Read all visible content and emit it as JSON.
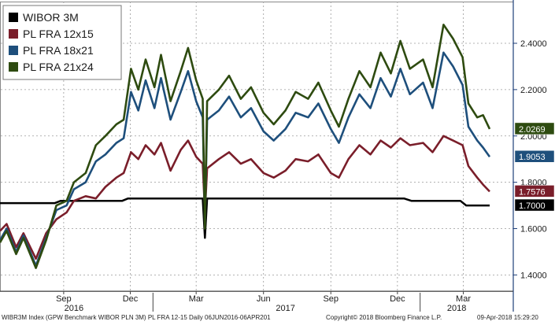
{
  "chart_data": {
    "type": "line",
    "title": "",
    "xlabel": "",
    "ylabel": "",
    "ylim": [
      1.33,
      2.58
    ],
    "y_ticks": [
      1.4,
      1.6,
      1.8,
      2.0,
      2.2,
      2.4
    ],
    "y_tick_labels": [
      "1.4000",
      "1.6000",
      "1.8000",
      "2.0000",
      "2.2000",
      "2.4000"
    ],
    "x_range": [
      "2016-06-06",
      "2018-04-06"
    ],
    "month_ticks": [
      {
        "label": "Sep",
        "date": "2016-09-01"
      },
      {
        "label": "Dec",
        "date": "2016-12-01"
      },
      {
        "label": "Mar",
        "date": "2017-03-01"
      },
      {
        "label": "Jun",
        "date": "2017-06-01"
      },
      {
        "label": "Sep",
        "date": "2017-09-01"
      },
      {
        "label": "Dec",
        "date": "2017-12-01"
      },
      {
        "label": "Mar",
        "date": "2018-03-01"
      }
    ],
    "year_labels": [
      {
        "label": "2016",
        "date": "2016-09-15"
      },
      {
        "label": "2017",
        "date": "2017-07-01"
      },
      {
        "label": "2018",
        "date": "2018-02-20"
      }
    ],
    "year_separators": [
      "2017-01-01",
      "2018-01-01"
    ],
    "grid": true,
    "legend_position": "top-left",
    "series": [
      {
        "name": "WIBOR 3M",
        "color": "#000000",
        "last_value": "1.7000",
        "points": [
          [
            "2016-06-06",
            1.71
          ],
          [
            "2016-08-20",
            1.71
          ],
          [
            "2016-08-28",
            1.72
          ],
          [
            "2016-11-20",
            1.72
          ],
          [
            "2016-11-28",
            1.73
          ],
          [
            "2017-03-10",
            1.73
          ],
          [
            "2017-03-13",
            1.56
          ],
          [
            "2017-03-16",
            1.73
          ],
          [
            "2017-12-10",
            1.73
          ],
          [
            "2017-12-20",
            1.72
          ],
          [
            "2018-02-25",
            1.72
          ],
          [
            "2018-03-05",
            1.7
          ],
          [
            "2018-04-06",
            1.7
          ]
        ]
      },
      {
        "name": "PL FRA 12x15",
        "color": "#7a1e2a",
        "last_value": "1.7576",
        "points": [
          [
            "2016-06-06",
            1.59
          ],
          [
            "2016-06-15",
            1.62
          ],
          [
            "2016-06-28",
            1.52
          ],
          [
            "2016-07-08",
            1.58
          ],
          [
            "2016-07-25",
            1.47
          ],
          [
            "2016-08-08",
            1.58
          ],
          [
            "2016-08-22",
            1.64
          ],
          [
            "2016-09-05",
            1.67
          ],
          [
            "2016-09-15",
            1.72
          ],
          [
            "2016-10-01",
            1.74
          ],
          [
            "2016-10-15",
            1.73
          ],
          [
            "2016-10-28",
            1.78
          ],
          [
            "2016-11-12",
            1.82
          ],
          [
            "2016-11-22",
            1.84
          ],
          [
            "2016-12-02",
            1.93
          ],
          [
            "2016-12-12",
            1.9
          ],
          [
            "2016-12-22",
            1.96
          ],
          [
            "2017-01-03",
            1.92
          ],
          [
            "2017-01-12",
            1.97
          ],
          [
            "2017-01-25",
            1.85
          ],
          [
            "2017-02-08",
            1.94
          ],
          [
            "2017-02-18",
            1.98
          ],
          [
            "2017-03-01",
            1.91
          ],
          [
            "2017-03-10",
            1.88
          ],
          [
            "2017-03-13",
            1.67
          ],
          [
            "2017-03-16",
            1.86
          ],
          [
            "2017-04-01",
            1.9
          ],
          [
            "2017-04-15",
            1.93
          ],
          [
            "2017-05-01",
            1.88
          ],
          [
            "2017-05-15",
            1.9
          ],
          [
            "2017-06-01",
            1.84
          ],
          [
            "2017-06-15",
            1.82
          ],
          [
            "2017-07-01",
            1.85
          ],
          [
            "2017-07-15",
            1.9
          ],
          [
            "2017-08-01",
            1.89
          ],
          [
            "2017-08-15",
            1.92
          ],
          [
            "2017-09-01",
            1.84
          ],
          [
            "2017-09-12",
            1.82
          ],
          [
            "2017-09-25",
            1.9
          ],
          [
            "2017-10-10",
            1.96
          ],
          [
            "2017-10-25",
            1.92
          ],
          [
            "2017-11-08",
            1.98
          ],
          [
            "2017-11-22",
            1.95
          ],
          [
            "2017-12-05",
            1.99
          ],
          [
            "2017-12-18",
            1.96
          ],
          [
            "2018-01-05",
            1.97
          ],
          [
            "2018-01-18",
            1.93
          ],
          [
            "2018-02-02",
            2.0
          ],
          [
            "2018-02-15",
            1.98
          ],
          [
            "2018-02-28",
            1.96
          ],
          [
            "2018-03-08",
            1.87
          ],
          [
            "2018-03-20",
            1.82
          ],
          [
            "2018-03-28",
            1.79
          ],
          [
            "2018-04-06",
            1.76
          ]
        ]
      },
      {
        "name": "PL FRA 18x21",
        "color": "#1e4f7c",
        "last_value": "1.9053",
        "points": [
          [
            "2016-06-06",
            1.55
          ],
          [
            "2016-06-15",
            1.6
          ],
          [
            "2016-06-28",
            1.5
          ],
          [
            "2016-07-08",
            1.57
          ],
          [
            "2016-07-25",
            1.44
          ],
          [
            "2016-08-08",
            1.56
          ],
          [
            "2016-08-22",
            1.68
          ],
          [
            "2016-09-05",
            1.7
          ],
          [
            "2016-09-15",
            1.77
          ],
          [
            "2016-10-01",
            1.8
          ],
          [
            "2016-10-15",
            1.89
          ],
          [
            "2016-10-28",
            1.92
          ],
          [
            "2016-11-12",
            1.97
          ],
          [
            "2016-11-22",
            1.99
          ],
          [
            "2016-12-02",
            2.19
          ],
          [
            "2016-12-12",
            2.11
          ],
          [
            "2016-12-22",
            2.24
          ],
          [
            "2017-01-03",
            2.12
          ],
          [
            "2017-01-12",
            2.25
          ],
          [
            "2017-01-25",
            2.07
          ],
          [
            "2017-02-08",
            2.19
          ],
          [
            "2017-02-18",
            2.28
          ],
          [
            "2017-03-01",
            2.15
          ],
          [
            "2017-03-10",
            2.08
          ],
          [
            "2017-03-13",
            1.62
          ],
          [
            "2017-03-16",
            2.07
          ],
          [
            "2017-04-01",
            2.11
          ],
          [
            "2017-04-15",
            2.17
          ],
          [
            "2017-05-01",
            2.08
          ],
          [
            "2017-05-15",
            2.12
          ],
          [
            "2017-06-01",
            2.02
          ],
          [
            "2017-06-15",
            1.98
          ],
          [
            "2017-07-01",
            2.03
          ],
          [
            "2017-07-15",
            2.1
          ],
          [
            "2017-08-01",
            2.08
          ],
          [
            "2017-08-15",
            2.14
          ],
          [
            "2017-09-01",
            2.03
          ],
          [
            "2017-09-12",
            1.97
          ],
          [
            "2017-09-25",
            2.08
          ],
          [
            "2017-10-10",
            2.18
          ],
          [
            "2017-10-25",
            2.12
          ],
          [
            "2017-11-08",
            2.25
          ],
          [
            "2017-11-22",
            2.17
          ],
          [
            "2017-12-05",
            2.29
          ],
          [
            "2017-12-18",
            2.18
          ],
          [
            "2018-01-05",
            2.23
          ],
          [
            "2018-01-18",
            2.12
          ],
          [
            "2018-02-02",
            2.36
          ],
          [
            "2018-02-15",
            2.3
          ],
          [
            "2018-02-28",
            2.22
          ],
          [
            "2018-03-08",
            2.04
          ],
          [
            "2018-03-20",
            1.98
          ],
          [
            "2018-03-28",
            1.95
          ],
          [
            "2018-04-06",
            1.91
          ]
        ]
      },
      {
        "name": "PL FRA 21x24",
        "color": "#2e4b10",
        "last_value": "2.0269",
        "points": [
          [
            "2016-06-06",
            1.54
          ],
          [
            "2016-06-15",
            1.59
          ],
          [
            "2016-06-28",
            1.49
          ],
          [
            "2016-07-08",
            1.56
          ],
          [
            "2016-07-25",
            1.43
          ],
          [
            "2016-08-08",
            1.55
          ],
          [
            "2016-08-22",
            1.7
          ],
          [
            "2016-09-05",
            1.72
          ],
          [
            "2016-09-15",
            1.8
          ],
          [
            "2016-10-01",
            1.84
          ],
          [
            "2016-10-15",
            1.96
          ],
          [
            "2016-10-28",
            2.0
          ],
          [
            "2016-11-12",
            2.05
          ],
          [
            "2016-11-22",
            2.07
          ],
          [
            "2016-12-02",
            2.29
          ],
          [
            "2016-12-12",
            2.2
          ],
          [
            "2016-12-22",
            2.33
          ],
          [
            "2017-01-03",
            2.21
          ],
          [
            "2017-01-12",
            2.35
          ],
          [
            "2017-01-25",
            2.15
          ],
          [
            "2017-02-08",
            2.28
          ],
          [
            "2017-02-18",
            2.38
          ],
          [
            "2017-03-01",
            2.24
          ],
          [
            "2017-03-10",
            2.16
          ],
          [
            "2017-03-13",
            1.6
          ],
          [
            "2017-03-16",
            2.15
          ],
          [
            "2017-04-01",
            2.2
          ],
          [
            "2017-04-15",
            2.26
          ],
          [
            "2017-05-01",
            2.16
          ],
          [
            "2017-05-15",
            2.21
          ],
          [
            "2017-06-01",
            2.1
          ],
          [
            "2017-06-15",
            2.05
          ],
          [
            "2017-07-01",
            2.11
          ],
          [
            "2017-07-15",
            2.19
          ],
          [
            "2017-08-01",
            2.16
          ],
          [
            "2017-08-15",
            2.23
          ],
          [
            "2017-09-01",
            2.11
          ],
          [
            "2017-09-12",
            2.04
          ],
          [
            "2017-09-25",
            2.16
          ],
          [
            "2017-10-10",
            2.28
          ],
          [
            "2017-10-25",
            2.21
          ],
          [
            "2017-11-08",
            2.36
          ],
          [
            "2017-11-22",
            2.27
          ],
          [
            "2017-12-05",
            2.41
          ],
          [
            "2017-12-18",
            2.29
          ],
          [
            "2018-01-05",
            2.33
          ],
          [
            "2018-01-18",
            2.21
          ],
          [
            "2018-02-02",
            2.48
          ],
          [
            "2018-02-15",
            2.42
          ],
          [
            "2018-02-28",
            2.34
          ],
          [
            "2018-03-08",
            2.14
          ],
          [
            "2018-03-20",
            2.08
          ],
          [
            "2018-03-28",
            2.09
          ],
          [
            "2018-04-06",
            2.03
          ]
        ]
      }
    ]
  },
  "footer": {
    "left": "WIBR3M Index (GPW Benchmark WIBOR PLN 3M) PL FRA 12-15  Daily 06JUN2016-06APR201",
    "center": "Copyright© 2018 Bloomberg Finance L.P.",
    "right": "09-Apr-2018 15:29:20"
  }
}
